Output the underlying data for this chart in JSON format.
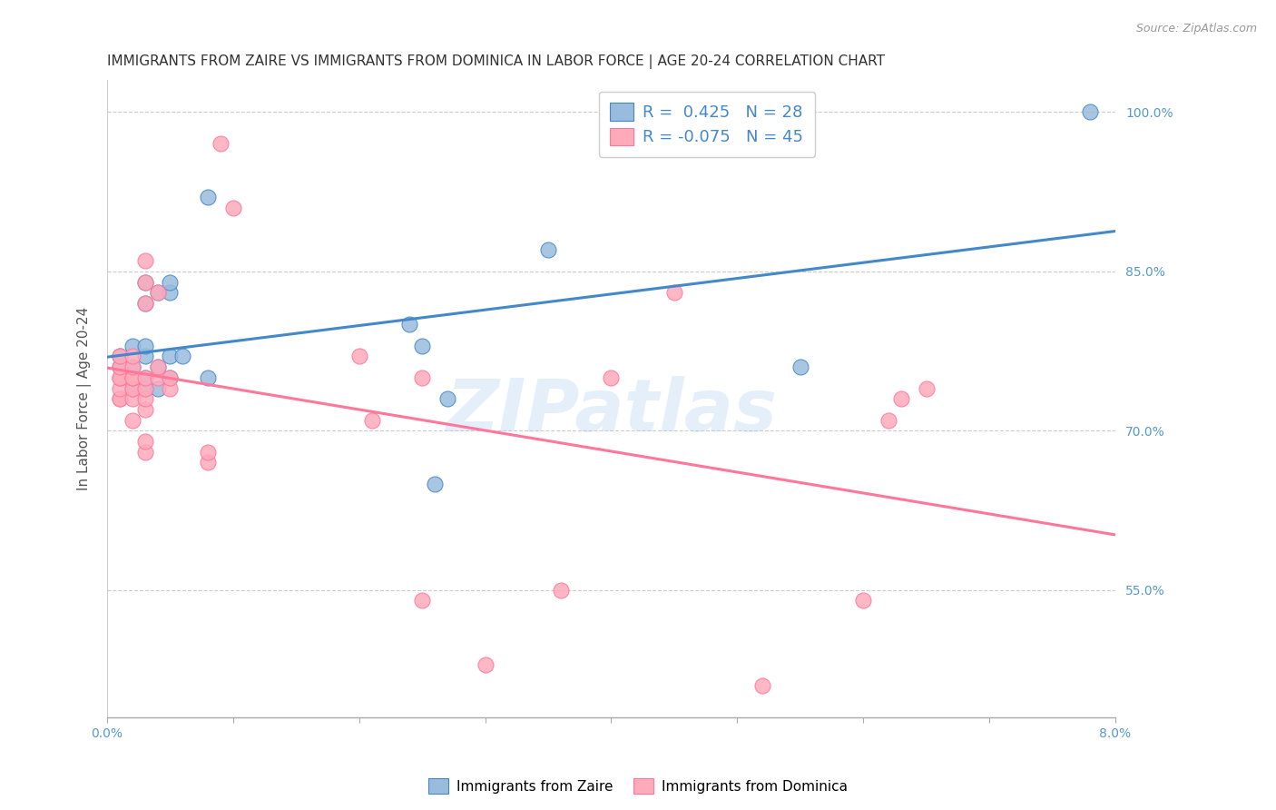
{
  "title": "IMMIGRANTS FROM ZAIRE VS IMMIGRANTS FROM DOMINICA IN LABOR FORCE | AGE 20-24 CORRELATION CHART",
  "source": "Source: ZipAtlas.com",
  "ylabel": "In Labor Force | Age 20-24",
  "xlim": [
    0.0,
    0.08
  ],
  "ylim": [
    0.43,
    1.03
  ],
  "xticks": [
    0.0,
    0.01,
    0.02,
    0.03,
    0.04,
    0.05,
    0.06,
    0.07,
    0.08
  ],
  "xticklabels": [
    "0.0%",
    "",
    "",
    "",
    "",
    "",
    "",
    "",
    "8.0%"
  ],
  "yticks": [
    0.55,
    0.7,
    0.85,
    1.0
  ],
  "yticklabels": [
    "55.0%",
    "70.0%",
    "85.0%",
    "100.0%"
  ],
  "grid_color": "#cccccc",
  "background_color": "#ffffff",
  "blue_color": "#99bbdd",
  "pink_color": "#ffaabb",
  "blue_line_color": "#4488cc",
  "pink_line_color": "#ff7799",
  "tick_color": "#5599cc",
  "legend_text_blue": "R =  0.425   N = 28",
  "legend_text_pink": "R = -0.075   N = 45",
  "label_blue": "Immigrants from Zaire",
  "label_pink": "Immigrants from Dominica",
  "zaire_x": [
    0.001,
    0.001,
    0.002,
    0.002,
    0.002,
    0.003,
    0.003,
    0.003,
    0.003,
    0.003,
    0.003,
    0.004,
    0.004,
    0.004,
    0.005,
    0.005,
    0.005,
    0.005,
    0.006,
    0.008,
    0.008,
    0.024,
    0.025,
    0.026,
    0.027,
    0.035,
    0.055,
    0.078
  ],
  "zaire_y": [
    0.76,
    0.77,
    0.74,
    0.76,
    0.78,
    0.74,
    0.75,
    0.77,
    0.78,
    0.82,
    0.84,
    0.74,
    0.76,
    0.83,
    0.75,
    0.77,
    0.83,
    0.84,
    0.77,
    0.75,
    0.92,
    0.8,
    0.78,
    0.65,
    0.73,
    0.87,
    0.76,
    1.0
  ],
  "dominica_x": [
    0.001,
    0.001,
    0.001,
    0.001,
    0.001,
    0.001,
    0.001,
    0.002,
    0.002,
    0.002,
    0.002,
    0.002,
    0.002,
    0.002,
    0.003,
    0.003,
    0.003,
    0.003,
    0.003,
    0.003,
    0.003,
    0.003,
    0.003,
    0.004,
    0.004,
    0.004,
    0.005,
    0.005,
    0.008,
    0.008,
    0.009,
    0.01,
    0.02,
    0.021,
    0.025,
    0.025,
    0.03,
    0.036,
    0.04,
    0.045,
    0.052,
    0.06,
    0.062,
    0.063,
    0.065
  ],
  "dominica_y": [
    0.73,
    0.73,
    0.74,
    0.75,
    0.75,
    0.76,
    0.77,
    0.71,
    0.73,
    0.74,
    0.75,
    0.75,
    0.76,
    0.77,
    0.68,
    0.69,
    0.72,
    0.73,
    0.74,
    0.75,
    0.82,
    0.84,
    0.86,
    0.75,
    0.76,
    0.83,
    0.74,
    0.75,
    0.67,
    0.68,
    0.97,
    0.91,
    0.77,
    0.71,
    0.75,
    0.54,
    0.48,
    0.55,
    0.75,
    0.83,
    0.46,
    0.54,
    0.71,
    0.73,
    0.74
  ],
  "watermark": "ZIPatlas",
  "title_fontsize": 11,
  "axis_label_fontsize": 11,
  "tick_fontsize": 10,
  "legend_fontsize": 13
}
